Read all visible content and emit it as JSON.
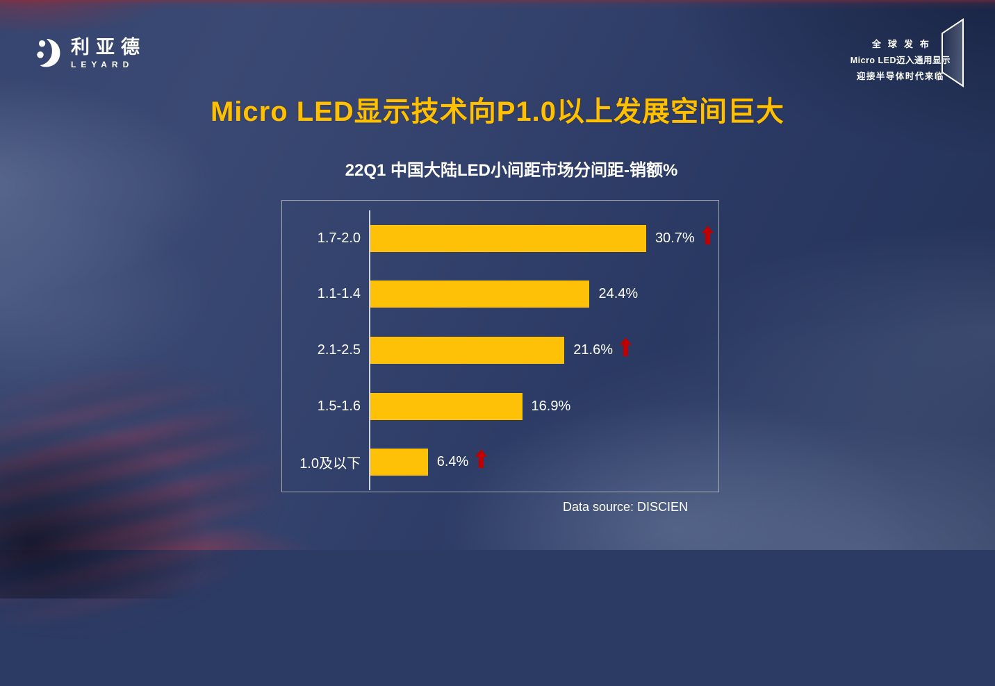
{
  "brand": {
    "logo_cn": "利亚德",
    "logo_en": "LEYARD"
  },
  "corner_banner": {
    "line1": "全球发布",
    "line2": "Micro LED迈入通用显示",
    "line3": "迎接半导体时代来临"
  },
  "title": "Micro LED显示技术向P1.0以上发展空间巨大",
  "chart": {
    "title": "22Q1 中国大陆LED小间距市场分间距-销额%",
    "source": "Data source: DISCIEN"
  },
  "chart_data": {
    "type": "bar",
    "orientation": "horizontal",
    "title": "22Q1 中国大陆LED小间距市场分间距-销额%",
    "categories": [
      "1.7-2.0",
      "1.1-1.4",
      "2.1-2.5",
      "1.5-1.6",
      "1.0及以下"
    ],
    "values": [
      30.7,
      24.4,
      21.6,
      16.9,
      6.4
    ],
    "labels": [
      "30.7%",
      "24.4%",
      "21.6%",
      "16.9%",
      "6.4%"
    ],
    "trend_up": [
      true,
      false,
      true,
      false,
      true
    ],
    "unit": "%",
    "xlim": [
      0,
      39
    ],
    "grid": false,
    "legend": false,
    "bar_color": "#FFC008",
    "arrow_color": "#C00000",
    "source": "Data source: DISCIEN"
  },
  "icons": {
    "logo": "leyard-swirl-icon",
    "trend": "up-arrow-icon",
    "banner_frame": "display-frame-icon"
  },
  "colors": {
    "accent_gold": "#FFC000",
    "bar_yellow": "#FFC008",
    "arrow_red": "#C00000",
    "text_white": "#FFFFFF",
    "bg_navy": "#2C3B64"
  }
}
